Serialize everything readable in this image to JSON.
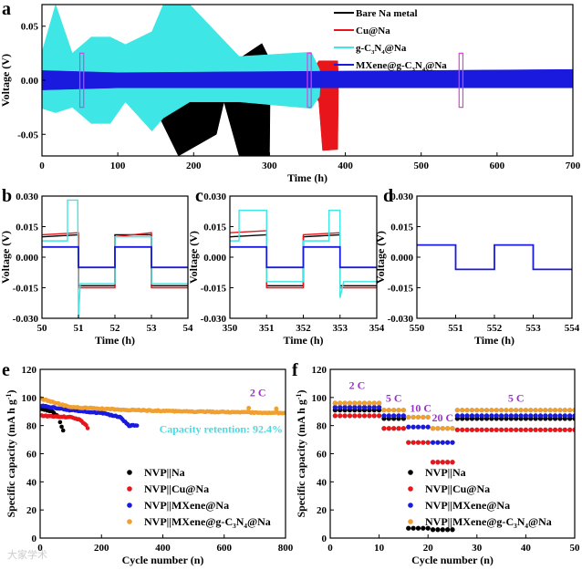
{
  "colors": {
    "black": "#000000",
    "red": "#e8161b",
    "cyan": "#3ee6e6",
    "blue": "#1a1adf",
    "orange": "#f0a030",
    "purple": "#9933cc",
    "highlight": "#e040e0",
    "retention": "#4dd9e0"
  },
  "watermark": "大家学术",
  "chart_data": [
    {
      "panel": "a",
      "type": "line",
      "xlabel": "Time (h)",
      "ylabel": "Voltage (V)",
      "xlim": [
        0,
        700
      ],
      "ylim": [
        -0.07,
        0.07
      ],
      "xticks": [
        "0",
        "100",
        "200",
        "300",
        "400",
        "500",
        "600",
        "700"
      ],
      "xtick_values": [
        0,
        100,
        200,
        300,
        400,
        500,
        600,
        700
      ],
      "yticks": [
        "-0.05",
        "0.00",
        "0.05"
      ],
      "ytick_values": [
        -0.05,
        0,
        0.05
      ],
      "legend": "top-right",
      "highlight_windows_h": [
        [
          50,
          55
        ],
        [
          350,
          355
        ],
        [
          550,
          555
        ]
      ],
      "series": [
        {
          "name": "Bare Na metal",
          "color": "black",
          "envelope": [
            [
              0,
              0.012,
              -0.014
            ],
            [
              150,
              0.012,
              -0.014
            ],
            [
              152,
              0.02,
              -0.03
            ],
            [
              180,
              0.025,
              -0.07
            ],
            [
              230,
              0.022,
              -0.05
            ],
            [
              240,
              0.016,
              -0.02
            ],
            [
              260,
              0.02,
              -0.07
            ],
            [
              290,
              0.034,
              -0.07
            ],
            [
              300,
              0.02,
              -0.07
            ],
            [
              301,
              0,
              0
            ]
          ]
        },
        {
          "name": "Cu@Na",
          "color": "red",
          "envelope": [
            [
              0,
              0.012,
              -0.014
            ],
            [
              360,
              0.013,
              -0.014
            ],
            [
              365,
              0.018,
              -0.02
            ],
            [
              370,
              0.018,
              -0.065
            ],
            [
              390,
              0.018,
              -0.064
            ],
            [
              391,
              0,
              0
            ]
          ]
        },
        {
          "name": "g-C3N4@Na",
          "color": "cyan",
          "envelope": [
            [
              0,
              0.026,
              -0.026
            ],
            [
              18,
              0.07,
              -0.03
            ],
            [
              40,
              0.025,
              -0.025
            ],
            [
              65,
              0.04,
              -0.04
            ],
            [
              90,
              0.04,
              -0.04
            ],
            [
              110,
              0.033,
              -0.02
            ],
            [
              145,
              0.045,
              -0.047
            ],
            [
              160,
              0.07,
              -0.035
            ],
            [
              195,
              0.07,
              -0.02
            ],
            [
              260,
              0.022,
              -0.02
            ],
            [
              355,
              0.026,
              -0.026
            ],
            [
              366,
              0.01,
              -0.015
            ],
            [
              367,
              0,
              0
            ]
          ]
        },
        {
          "name": "MXene@g-C3N4@Na",
          "color": "blue",
          "envelope": [
            [
              0,
              0.009,
              -0.009
            ],
            [
              100,
              0.007,
              -0.007
            ],
            [
              700,
              0.01,
              -0.007
            ]
          ]
        }
      ]
    },
    {
      "panel": "b",
      "type": "line",
      "xlabel": "Time (h)",
      "ylabel": "Voltage (V)",
      "xlim": [
        50,
        54
      ],
      "ylim": [
        -0.03,
        0.03
      ],
      "xticks": [
        "50",
        "51",
        "52",
        "53",
        "54"
      ],
      "xtick_values": [
        50,
        51,
        52,
        53,
        54
      ],
      "yticks": [
        "-0.030",
        "-0.015",
        "0.000",
        "0.015",
        "0.030"
      ],
      "ytick_values": [
        -0.03,
        -0.015,
        0,
        0.015,
        0.03
      ],
      "series": [
        {
          "name": "Bare Na metal",
          "color": "black",
          "points": [
            [
              50,
              0.01
            ],
            [
              51,
              0.011
            ],
            [
              51,
              -0.014
            ],
            [
              52,
              -0.014
            ],
            [
              52,
              0.011
            ],
            [
              53,
              0.011
            ],
            [
              53,
              -0.014
            ],
            [
              54,
              -0.014
            ]
          ]
        },
        {
          "name": "Cu@Na",
          "color": "red",
          "points": [
            [
              50,
              0.011
            ],
            [
              51,
              0.012
            ],
            [
              51,
              -0.015
            ],
            [
              52,
              -0.015
            ],
            [
              52,
              0.01
            ],
            [
              53,
              0.012
            ],
            [
              53,
              -0.015
            ],
            [
              54,
              -0.015
            ]
          ]
        },
        {
          "name": "g-C3N4@Na",
          "color": "cyan",
          "points": [
            [
              50,
              0.008
            ],
            [
              50.7,
              0.008
            ],
            [
              50.7,
              0.028
            ],
            [
              50.98,
              0.028
            ],
            [
              51,
              -0.03
            ],
            [
              51.05,
              -0.013
            ],
            [
              52,
              -0.013
            ],
            [
              52,
              0.01
            ],
            [
              53,
              0.01
            ],
            [
              53,
              -0.013
            ],
            [
              54,
              -0.013
            ]
          ]
        },
        {
          "name": "MXene@g-C3N4@Na",
          "color": "blue",
          "points": [
            [
              50,
              0.005
            ],
            [
              51,
              0.005
            ],
            [
              51,
              -0.005
            ],
            [
              52,
              -0.005
            ],
            [
              52,
              0.005
            ],
            [
              53,
              0.005
            ],
            [
              53,
              -0.005
            ],
            [
              54,
              -0.005
            ]
          ]
        }
      ]
    },
    {
      "panel": "c",
      "type": "line",
      "xlabel": "Time (h)",
      "ylabel": "Voltage (V)",
      "xlim": [
        350,
        354
      ],
      "ylim": [
        -0.03,
        0.03
      ],
      "xticks": [
        "350",
        "351",
        "352",
        "353",
        "354"
      ],
      "xtick_values": [
        350,
        351,
        352,
        353,
        354
      ],
      "yticks": [
        "-0.030",
        "-0.015",
        "0.000",
        "0.015",
        "0.030"
      ],
      "ytick_values": [
        -0.03,
        -0.015,
        0,
        0.015,
        0.03
      ],
      "series": [
        {
          "name": "Bare Na metal",
          "color": "black",
          "points": [
            [
              350,
              0.01
            ],
            [
              351,
              0.011
            ],
            [
              351,
              -0.014
            ],
            [
              352,
              -0.014
            ],
            [
              352,
              0.01
            ],
            [
              353,
              0.011
            ],
            [
              353,
              -0.014
            ],
            [
              354,
              -0.014
            ]
          ]
        },
        {
          "name": "Cu@Na",
          "color": "red",
          "points": [
            [
              350,
              0.012
            ],
            [
              351,
              0.013
            ],
            [
              351,
              -0.015
            ],
            [
              352,
              -0.015
            ],
            [
              352,
              0.011
            ],
            [
              353,
              0.012
            ],
            [
              353,
              -0.015
            ],
            [
              354,
              -0.015
            ]
          ]
        },
        {
          "name": "g-C3N4@Na",
          "color": "cyan",
          "points": [
            [
              350,
              0.008
            ],
            [
              350.25,
              0.008
            ],
            [
              350.25,
              0.023
            ],
            [
              351,
              0.023
            ],
            [
              351,
              -0.012
            ],
            [
              352,
              -0.012
            ],
            [
              352,
              0.008
            ],
            [
              352.7,
              0.008
            ],
            [
              352.7,
              0.023
            ],
            [
              353,
              0.023
            ],
            [
              353,
              -0.02
            ],
            [
              353.1,
              -0.012
            ],
            [
              354,
              -0.012
            ]
          ]
        },
        {
          "name": "MXene@g-C3N4@Na",
          "color": "blue",
          "points": [
            [
              350,
              0.005
            ],
            [
              351,
              0.005
            ],
            [
              351,
              -0.005
            ],
            [
              352,
              -0.005
            ],
            [
              352,
              0.005
            ],
            [
              353,
              0.005
            ],
            [
              353,
              -0.005
            ],
            [
              354,
              -0.005
            ]
          ]
        }
      ]
    },
    {
      "panel": "d",
      "type": "line",
      "xlabel": "Time (h)",
      "ylabel": "Voltage (V)",
      "xlim": [
        550,
        554
      ],
      "ylim": [
        -0.03,
        0.03
      ],
      "xticks": [
        "550",
        "551",
        "552",
        "553",
        "554"
      ],
      "xtick_values": [
        550,
        551,
        552,
        553,
        554
      ],
      "yticks": [
        "-0.030",
        "-0.015",
        "0.000",
        "0.015",
        "0.030"
      ],
      "ytick_values": [
        -0.03,
        -0.015,
        0,
        0.015,
        0.03
      ],
      "series": [
        {
          "name": "MXene@g-C3N4@Na",
          "color": "blue",
          "points": [
            [
              550,
              0.006
            ],
            [
              551,
              0.006
            ],
            [
              551,
              -0.006
            ],
            [
              552,
              -0.006
            ],
            [
              552,
              0.006
            ],
            [
              553,
              0.006
            ],
            [
              553,
              -0.006
            ],
            [
              554,
              -0.006
            ]
          ]
        }
      ]
    },
    {
      "panel": "e",
      "type": "scatter",
      "xlabel": "Cycle number (n)",
      "ylabel": "Specific capacity (mA h g-1)",
      "xlim": [
        0,
        800
      ],
      "ylim": [
        0,
        120
      ],
      "xticks": [
        "0",
        "200",
        "400",
        "600",
        "800"
      ],
      "xtick_values": [
        0,
        200,
        400,
        600,
        800
      ],
      "yticks": [
        "0",
        "20",
        "40",
        "60",
        "80",
        "100",
        "120"
      ],
      "ytick_values": [
        0,
        20,
        40,
        60,
        80,
        100,
        120
      ],
      "legend": "bottom-center",
      "annotations": {
        "rate": "2 C",
        "retention": "Capacity retention: 92.4%"
      },
      "series": [
        {
          "name": "NVP||Na",
          "color": "black",
          "points": [
            [
              5,
              92
            ],
            [
              40,
              90
            ],
            [
              60,
              86
            ],
            [
              70,
              79
            ],
            [
              80,
              74
            ]
          ]
        },
        {
          "name": "NVP||Cu@Na",
          "color": "red",
          "points": [
            [
              5,
              87
            ],
            [
              100,
              86
            ],
            [
              130,
              84
            ],
            [
              150,
              80
            ],
            [
              160,
              77
            ]
          ]
        },
        {
          "name": "NVP||MXene@Na",
          "color": "blue",
          "points": [
            [
              5,
              94
            ],
            [
              100,
              91
            ],
            [
              200,
              89
            ],
            [
              260,
              86
            ],
            [
              290,
              80
            ],
            [
              320,
              80
            ]
          ]
        },
        {
          "name": "NVP||MXene@g-C3N4@Na",
          "color": "orange",
          "points": [
            [
              3,
              99
            ],
            [
              100,
              93
            ],
            [
              300,
              91
            ],
            [
              500,
              90
            ],
            [
              800,
              89
            ]
          ],
          "outliers": [
            [
              680,
              92.4
            ],
            [
              770,
              92
            ]
          ]
        }
      ]
    },
    {
      "panel": "f",
      "type": "scatter",
      "xlabel": "Cycle number (n)",
      "ylabel": "Specific capacity (mA h g-1)",
      "xlim": [
        0,
        50
      ],
      "ylim": [
        0,
        120
      ],
      "xticks": [
        "0",
        "10",
        "20",
        "30",
        "40",
        "50"
      ],
      "xtick_values": [
        0,
        10,
        20,
        30,
        40,
        50
      ],
      "yticks": [
        "0",
        "20",
        "40",
        "60",
        "80",
        "100",
        "120"
      ],
      "ytick_values": [
        0,
        20,
        40,
        60,
        80,
        100,
        120
      ],
      "legend": "bottom-right",
      "segments": [
        {
          "rate": "2 C",
          "cycles": [
            1,
            10
          ]
        },
        {
          "rate": "5 C",
          "cycles": [
            11,
            15
          ]
        },
        {
          "rate": "10 C",
          "cycles": [
            16,
            20
          ]
        },
        {
          "rate": "20 C",
          "cycles": [
            21,
            25
          ]
        },
        {
          "rate": "5 C",
          "cycles": [
            26,
            50
          ]
        }
      ],
      "series": [
        {
          "name": "NVP||Na",
          "color": "black",
          "values": [
            91,
            85,
            7,
            6,
            85
          ]
        },
        {
          "name": "NVP||Cu@Na",
          "color": "red",
          "values": [
            87,
            78,
            68,
            54,
            77
          ]
        },
        {
          "name": "NVP||MXene@Na",
          "color": "blue",
          "values": [
            93,
            87,
            79,
            68,
            87
          ]
        },
        {
          "name": "NVP||MXene@g-C3N4@Na",
          "color": "orange",
          "values": [
            96,
            91,
            86,
            78,
            91
          ]
        }
      ]
    }
  ],
  "labels": {
    "a": "a",
    "b": "b",
    "c": "c",
    "d": "d",
    "e": "e",
    "f": "f"
  }
}
